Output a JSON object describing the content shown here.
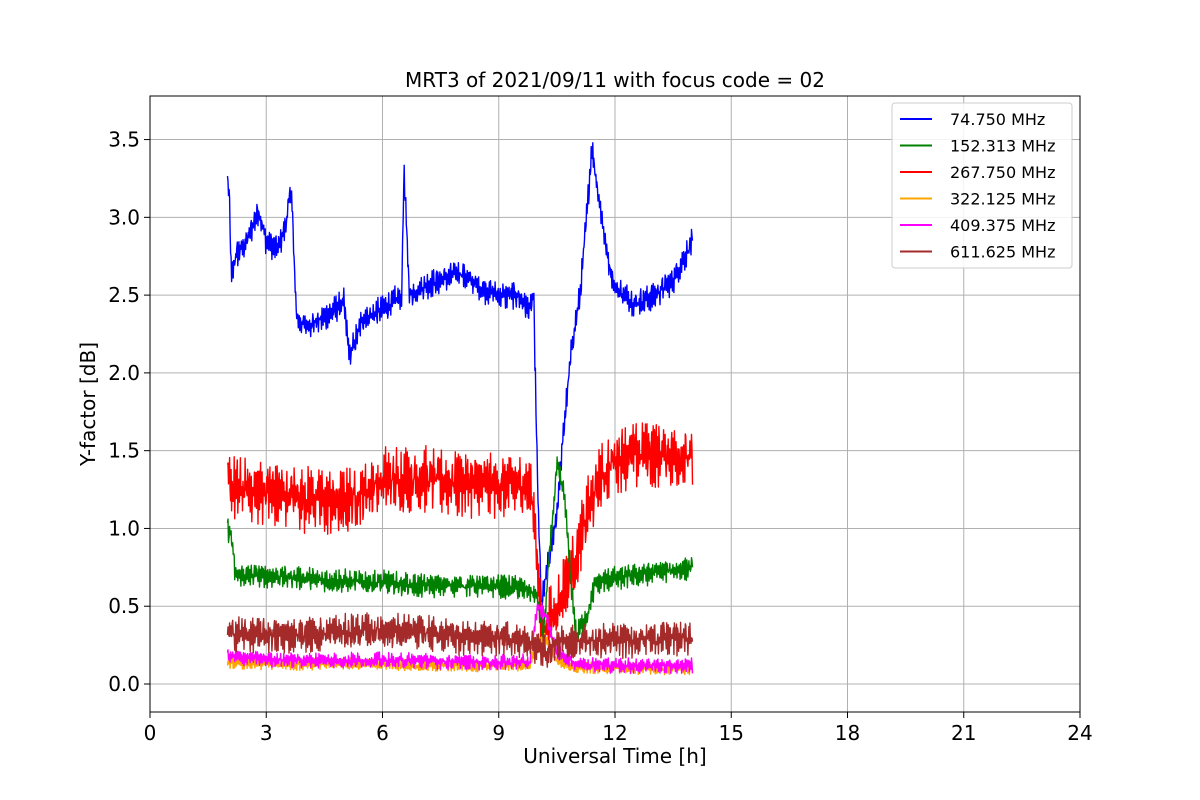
{
  "chart_data": {
    "type": "line",
    "title": "MRT3 of 2021/09/11 with focus code = 02",
    "xlabel": "Universal Time [h]",
    "ylabel": "Y-factor [dB]",
    "xlim": [
      0,
      24
    ],
    "ylim": [
      -0.18,
      3.78
    ],
    "xticks": [
      0,
      3,
      6,
      9,
      12,
      15,
      18,
      21,
      24
    ],
    "xtick_labels": [
      "0",
      "3",
      "6",
      "9",
      "12",
      "15",
      "18",
      "21",
      "24"
    ],
    "yticks": [
      0.0,
      0.5,
      1.0,
      1.5,
      2.0,
      2.5,
      3.0,
      3.5
    ],
    "ytick_labels": [
      "0.0",
      "0.5",
      "1.0",
      "1.5",
      "2.0",
      "2.5",
      "3.0",
      "3.5"
    ],
    "grid": true,
    "legend_position": "top-right",
    "series": [
      {
        "name": " 74.750 MHz",
        "color": "#0000ff",
        "noise": 0.07,
        "x": [
          2.0,
          2.05,
          2.1,
          2.2,
          2.5,
          2.8,
          3.0,
          3.3,
          3.5,
          3.65,
          3.75,
          3.8,
          4.0,
          4.5,
          5.0,
          5.15,
          5.5,
          6.0,
          6.5,
          6.55,
          6.7,
          7.0,
          7.5,
          8.0,
          8.5,
          9.0,
          9.5,
          9.8,
          9.9,
          10.0,
          10.1,
          10.3,
          10.5,
          10.7,
          10.9,
          11.1,
          11.3,
          11.4,
          11.6,
          11.8,
          12.0,
          12.5,
          13.0,
          13.5,
          14.0
        ],
        "y": [
          3.25,
          3.1,
          2.6,
          2.75,
          2.85,
          3.05,
          2.85,
          2.8,
          2.95,
          3.2,
          2.5,
          2.35,
          2.3,
          2.35,
          2.45,
          2.1,
          2.35,
          2.4,
          2.5,
          3.3,
          2.5,
          2.55,
          2.6,
          2.65,
          2.55,
          2.5,
          2.5,
          2.4,
          2.5,
          1.3,
          0.5,
          0.8,
          1.1,
          1.7,
          2.2,
          2.5,
          3.1,
          3.45,
          3.1,
          2.75,
          2.55,
          2.45,
          2.5,
          2.6,
          2.85
        ]
      },
      {
        "name": "152.313 MHz",
        "color": "#008000",
        "noise": 0.06,
        "x": [
          2.0,
          2.1,
          2.2,
          3.0,
          4.0,
          5.0,
          6.0,
          7.0,
          8.0,
          9.0,
          9.5,
          9.8,
          10.0,
          10.15,
          10.3,
          10.5,
          10.7,
          10.85,
          11.0,
          11.3,
          11.5,
          12.0,
          13.0,
          14.0
        ],
        "y": [
          1.0,
          0.95,
          0.7,
          0.7,
          0.68,
          0.66,
          0.65,
          0.63,
          0.64,
          0.63,
          0.62,
          0.6,
          0.55,
          0.3,
          0.8,
          1.4,
          1.2,
          0.7,
          0.3,
          0.45,
          0.65,
          0.68,
          0.72,
          0.75
        ]
      },
      {
        "name": "267.750 MHz",
        "color": "#ff0000",
        "noise": 0.17,
        "x": [
          2.0,
          2.2,
          3.0,
          4.0,
          5.0,
          6.0,
          7.0,
          8.0,
          9.0,
          9.8,
          9.95,
          10.1,
          10.3,
          10.6,
          11.0,
          11.3,
          11.6,
          12.0,
          13.0,
          14.0
        ],
        "y": [
          1.3,
          1.25,
          1.25,
          1.2,
          1.15,
          1.3,
          1.32,
          1.3,
          1.28,
          1.28,
          1.0,
          0.3,
          0.4,
          0.55,
          0.8,
          1.1,
          1.3,
          1.45,
          1.5,
          1.45
        ]
      },
      {
        "name": "322.125 MHz",
        "color": "#ffa500",
        "noise": 0.03,
        "x": [
          2.0,
          3.0,
          5.0,
          7.0,
          9.0,
          9.8,
          10.0,
          10.2,
          10.5,
          11.0,
          12.0,
          13.0,
          14.0
        ],
        "y": [
          0.14,
          0.13,
          0.13,
          0.12,
          0.12,
          0.12,
          0.25,
          0.3,
          0.15,
          0.1,
          0.1,
          0.1,
          0.1
        ]
      },
      {
        "name": "409.375 MHz",
        "color": "#ff00ff",
        "noise": 0.04,
        "x": [
          2.0,
          3.0,
          5.0,
          7.0,
          9.0,
          9.8,
          10.0,
          10.2,
          10.5,
          11.0,
          12.0,
          13.0,
          14.0
        ],
        "y": [
          0.18,
          0.16,
          0.15,
          0.15,
          0.14,
          0.14,
          0.5,
          0.45,
          0.2,
          0.13,
          0.12,
          0.12,
          0.12
        ]
      },
      {
        "name": "611.625 MHz",
        "color": "#a52a2a",
        "noise": 0.09,
        "x": [
          2.0,
          3.0,
          4.0,
          5.0,
          6.0,
          7.0,
          8.0,
          9.0,
          9.8,
          10.0,
          10.2,
          10.5,
          11.0,
          12.0,
          13.0,
          14.0
        ],
        "y": [
          0.33,
          0.32,
          0.32,
          0.33,
          0.34,
          0.33,
          0.31,
          0.3,
          0.28,
          0.22,
          0.2,
          0.25,
          0.27,
          0.28,
          0.3,
          0.3
        ]
      }
    ]
  }
}
